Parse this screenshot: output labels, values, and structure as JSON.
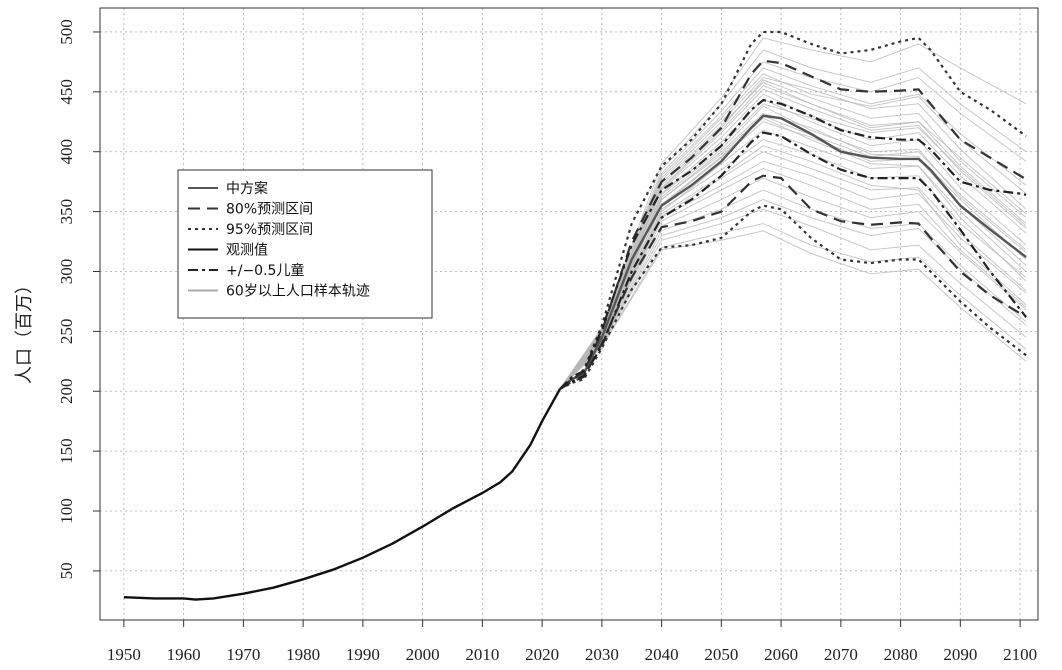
{
  "chart_data": {
    "type": "line",
    "title": "",
    "xlabel": "",
    "ylabel": "人口（百万）",
    "xlim": [
      1946,
      2103
    ],
    "ylim": [
      9,
      520
    ],
    "x_ticks": [
      1950,
      1960,
      1970,
      1980,
      1990,
      2000,
      2010,
      2020,
      2030,
      2040,
      2050,
      2060,
      2070,
      2080,
      2090,
      2100
    ],
    "y_ticks": [
      50,
      100,
      150,
      200,
      250,
      300,
      350,
      400,
      450,
      500
    ],
    "grid": true,
    "legend_position": "left-middle",
    "legend": [
      {
        "label": "中方案",
        "style": "solid",
        "color": "#555555"
      },
      {
        "label": "80%预测区间",
        "style": "dashed",
        "color": "#333333"
      },
      {
        "label": "95%预测区间",
        "style": "dotted",
        "color": "#333333"
      },
      {
        "label": "观测值",
        "style": "solid",
        "color": "#111111"
      },
      {
        "label": "+/−0.5儿童",
        "style": "dashdot",
        "color": "#222222"
      },
      {
        "label": "60岁以上人口样本轨迹",
        "style": "solid",
        "color": "#aaaaaa"
      }
    ],
    "series": [
      {
        "name": "观测值",
        "style": "solid",
        "color": "#111111",
        "x": [
          1950,
          1955,
          1960,
          1962,
          1965,
          1970,
          1975,
          1980,
          1985,
          1990,
          1995,
          2000,
          2005,
          2010,
          2013,
          2015,
          2018,
          2020,
          2022,
          2023
        ],
        "y": [
          28,
          27,
          27,
          26,
          27,
          31,
          36,
          43,
          51,
          61,
          73,
          87,
          102,
          115,
          124,
          133,
          155,
          175,
          193,
          202
        ]
      },
      {
        "name": "中方案",
        "style": "solid",
        "color": "#555555",
        "x": [
          2023,
          2025,
          2027,
          2030,
          2035,
          2040,
          2045,
          2050,
          2055,
          2057,
          2060,
          2065,
          2070,
          2075,
          2080,
          2083,
          2085,
          2090,
          2095,
          2101
        ],
        "y": [
          202,
          210,
          215,
          245,
          310,
          355,
          372,
          392,
          420,
          430,
          428,
          415,
          400,
          395,
          394,
          394,
          385,
          355,
          335,
          312
        ]
      },
      {
        "name": "80%预测区间",
        "style": "dashed",
        "color": "#333333",
        "x": [
          2023,
          2025,
          2027,
          2030,
          2035,
          2040,
          2045,
          2050,
          2055,
          2057,
          2060,
          2065,
          2070,
          2075,
          2080,
          2083,
          2085,
          2090,
          2095,
          2101
        ],
        "y": [
          202,
          210,
          216,
          250,
          325,
          375,
          395,
          420,
          465,
          476,
          474,
          463,
          452,
          450,
          451,
          452,
          440,
          410,
          395,
          377
        ]
      },
      {
        "name": "80%预测区间",
        "style": "dashed",
        "color": "#333333",
        "x": [
          2023,
          2025,
          2027,
          2030,
          2035,
          2040,
          2045,
          2050,
          2055,
          2057,
          2060,
          2065,
          2070,
          2075,
          2080,
          2083,
          2085,
          2090,
          2095,
          2101
        ],
        "y": [
          202,
          208,
          212,
          240,
          295,
          337,
          342,
          350,
          375,
          380,
          378,
          352,
          342,
          339,
          341,
          340,
          328,
          300,
          280,
          262
        ]
      },
      {
        "name": "95%预测区间",
        "style": "dotted",
        "color": "#333333",
        "x": [
          2023,
          2025,
          2027,
          2030,
          2035,
          2040,
          2045,
          2050,
          2055,
          2057,
          2060,
          2065,
          2070,
          2075,
          2080,
          2083,
          2085,
          2090,
          2095,
          2101
        ],
        "y": [
          202,
          211,
          218,
          255,
          340,
          388,
          410,
          440,
          490,
          500,
          500,
          490,
          482,
          485,
          492,
          495,
          485,
          450,
          435,
          413
        ]
      },
      {
        "name": "95%预测区间",
        "style": "dotted",
        "color": "#333333",
        "x": [
          2023,
          2025,
          2027,
          2030,
          2035,
          2040,
          2045,
          2050,
          2055,
          2057,
          2060,
          2065,
          2070,
          2075,
          2080,
          2083,
          2085,
          2090,
          2095,
          2101
        ],
        "y": [
          202,
          207,
          210,
          236,
          285,
          320,
          322,
          328,
          350,
          355,
          352,
          328,
          310,
          307,
          310,
          310,
          300,
          275,
          253,
          230
        ]
      },
      {
        "name": "+/−0.5儿童",
        "style": "dashdot",
        "color": "#222222",
        "x": [
          2023,
          2025,
          2027,
          2030,
          2035,
          2040,
          2045,
          2050,
          2055,
          2057,
          2060,
          2065,
          2070,
          2075,
          2080,
          2083,
          2085,
          2090,
          2095,
          2100,
          2101
        ],
        "y": [
          202,
          212,
          217,
          252,
          322,
          368,
          384,
          405,
          435,
          443,
          440,
          430,
          418,
          412,
          410,
          410,
          402,
          375,
          368,
          365,
          364
        ]
      },
      {
        "name": "+/−0.5儿童",
        "style": "dashdot",
        "color": "#222222",
        "x": [
          2023,
          2025,
          2027,
          2030,
          2035,
          2040,
          2045,
          2050,
          2055,
          2057,
          2060,
          2065,
          2070,
          2075,
          2080,
          2083,
          2085,
          2090,
          2095,
          2101
        ],
        "y": [
          202,
          208,
          213,
          238,
          300,
          345,
          360,
          380,
          408,
          416,
          413,
          398,
          385,
          378,
          378,
          378,
          368,
          335,
          300,
          262
        ]
      }
    ],
    "sample_trajectories": {
      "name": "60岁以上人口样本轨迹",
      "color": "#b5b5b5",
      "x": [
        2023,
        2030,
        2040,
        2050,
        2057,
        2065,
        2075,
        2083,
        2090,
        2101
      ],
      "trajectories": [
        [
          202,
          246,
          360,
          400,
          432,
          420,
          398,
          396,
          360,
          310
        ],
        [
          202,
          248,
          370,
          418,
          455,
          440,
          420,
          425,
          395,
          348
        ],
        [
          202,
          242,
          345,
          372,
          392,
          380,
          360,
          365,
          328,
          282
        ],
        [
          202,
          250,
          380,
          430,
          470,
          455,
          440,
          448,
          415,
          372
        ],
        [
          202,
          240,
          330,
          345,
          360,
          345,
          330,
          336,
          302,
          255
        ],
        [
          202,
          247,
          365,
          408,
          444,
          425,
          405,
          410,
          370,
          322
        ],
        [
          202,
          244,
          352,
          385,
          410,
          398,
          378,
          380,
          340,
          295
        ],
        [
          202,
          252,
          385,
          440,
          485,
          470,
          458,
          470,
          440,
          400
        ],
        [
          202,
          238,
          320,
          332,
          340,
          322,
          308,
          312,
          280,
          235
        ],
        [
          202,
          249,
          372,
          420,
          460,
          445,
          428,
          432,
          392,
          345
        ],
        [
          202,
          245,
          355,
          395,
          425,
          412,
          392,
          394,
          355,
          305
        ],
        [
          202,
          243,
          348,
          380,
          405,
          392,
          372,
          368,
          322,
          272
        ],
        [
          202,
          251,
          378,
          428,
          465,
          448,
          438,
          446,
          410,
          365
        ],
        [
          202,
          241,
          338,
          360,
          378,
          362,
          345,
          350,
          316,
          268
        ],
        [
          202,
          246,
          362,
          402,
          438,
          418,
          400,
          402,
          362,
          316
        ],
        [
          202,
          248,
          368,
          412,
          448,
          430,
          416,
          420,
          386,
          338
        ],
        [
          202,
          244,
          350,
          390,
          418,
          404,
          386,
          388,
          350,
          300
        ],
        [
          202,
          253,
          390,
          445,
          495,
          485,
          475,
          490,
          470,
          440
        ],
        [
          202,
          239,
          326,
          340,
          352,
          338,
          318,
          322,
          290,
          245
        ],
        [
          202,
          247,
          364,
          405,
          440,
          428,
          410,
          416,
          380,
          332
        ],
        [
          202,
          245,
          356,
          396,
          428,
          410,
          390,
          388,
          345,
          292
        ],
        [
          202,
          250,
          376,
          425,
          462,
          452,
          436,
          440,
          402,
          352
        ],
        [
          202,
          242,
          342,
          368,
          386,
          372,
          352,
          356,
          318,
          270
        ],
        [
          202,
          246,
          360,
          398,
          430,
          414,
          396,
          400,
          364,
          318
        ],
        [
          202,
          237,
          318,
          326,
          334,
          315,
          298,
          302,
          270,
          225
        ],
        [
          202,
          249,
          374,
          422,
          458,
          440,
          422,
          425,
          388,
          340
        ],
        [
          202,
          243,
          346,
          378,
          400,
          386,
          368,
          370,
          332,
          284
        ],
        [
          202,
          248,
          369,
          416,
          452,
          436,
          418,
          422,
          384,
          336
        ],
        [
          202,
          251,
          382,
          434,
          475,
          462,
          450,
          462,
          432,
          392
        ],
        [
          202,
          240,
          334,
          352,
          368,
          352,
          336,
          340,
          305,
          258
        ]
      ]
    }
  }
}
